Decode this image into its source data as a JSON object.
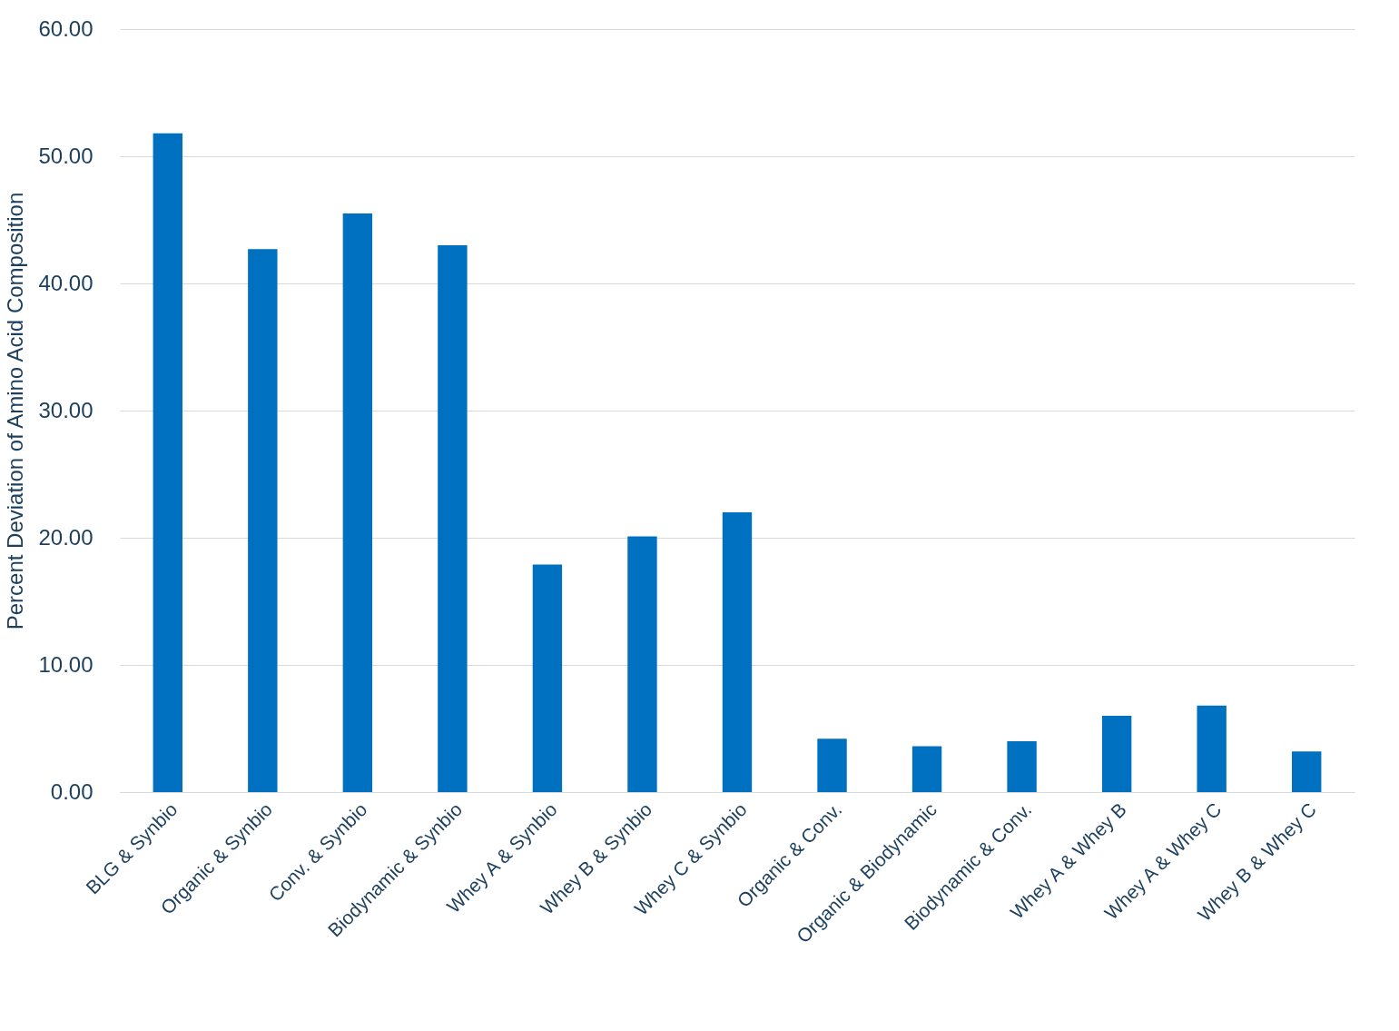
{
  "chart_data": {
    "type": "bar",
    "ylabel": "Percent Deviation of Amino Acid Composition",
    "categories": [
      "BLG & Synbio",
      "Organic & Synbio",
      "Conv. & Synbio",
      "Biodynamic & Synbio",
      "Whey A & Synbio",
      "Whey B & Synbio",
      "Whey C & Synbio",
      "Organic & Conv.",
      "Organic & Biodynamic",
      "Biodynamic & Conv.",
      "Whey A & Whey B",
      "Whey A & Whey C",
      "Whey B & Whey C"
    ],
    "values": [
      51.8,
      42.7,
      45.5,
      43.0,
      17.9,
      20.1,
      22.0,
      4.2,
      3.6,
      4.0,
      6.0,
      6.8,
      3.2
    ],
    "color": "#0070c0",
    "ylim": [
      0,
      60
    ],
    "yticks": [
      {
        "value": 0,
        "label": "0.00"
      },
      {
        "value": 10,
        "label": "10.00"
      },
      {
        "value": 20,
        "label": "20.00"
      },
      {
        "value": 30,
        "label": "30.00"
      },
      {
        "value": 40,
        "label": "40.00"
      },
      {
        "value": 50,
        "label": "50.00"
      },
      {
        "value": 60,
        "label": "60.00"
      }
    ],
    "grid": "y"
  }
}
